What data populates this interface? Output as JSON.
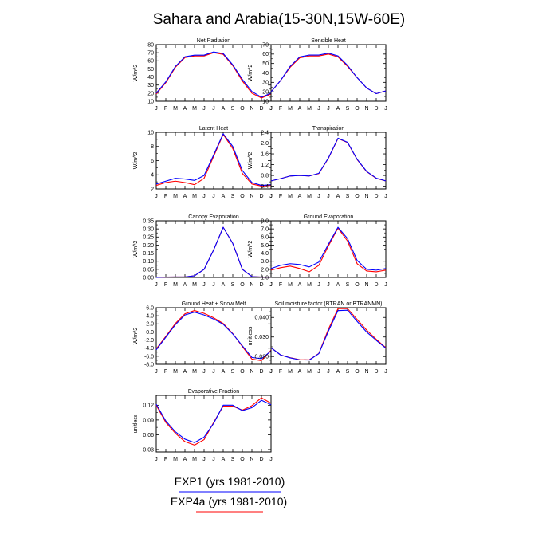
{
  "title": "Sahara and Arabia(15-30N,15W-60E)",
  "months": [
    "J",
    "F",
    "M",
    "A",
    "M",
    "J",
    "J",
    "A",
    "S",
    "O",
    "N",
    "D",
    "J"
  ],
  "legend": [
    {
      "label": "EXP1 (yrs 1981-2010)",
      "color": "#0000ff"
    },
    {
      "label": "EXP4a (yrs 1981-2010)",
      "color": "#ff0000"
    }
  ],
  "colors": {
    "exp1": "#0000ff",
    "exp4a": "#ff0000",
    "axis": "#000000"
  },
  "chart_data": [
    {
      "type": "line",
      "title": "Net Radiation",
      "ylabel": "W/m^2",
      "ylim": [
        10,
        80
      ],
      "yticks": [
        10,
        20,
        30,
        40,
        50,
        60,
        70,
        80
      ],
      "ytick_labels": [
        "10",
        "20",
        "30",
        "40",
        "50",
        "60",
        "70",
        "80"
      ],
      "series": [
        {
          "values": [
            20,
            34,
            53,
            65,
            67,
            67,
            71,
            69,
            55,
            37,
            22,
            15,
            20
          ]
        },
        {
          "values": [
            19,
            33,
            52,
            64,
            66,
            66,
            70,
            68,
            54,
            35,
            20,
            14,
            19
          ]
        }
      ]
    },
    {
      "type": "line",
      "title": "Sensible Heat",
      "ylabel": "W/m^2",
      "ylim": [
        10,
        70
      ],
      "yticks": [
        10,
        20,
        30,
        40,
        50,
        60,
        70
      ],
      "ytick_labels": [
        "10",
        "20",
        "30",
        "40",
        "50",
        "60",
        "70"
      ],
      "series": [
        {
          "values": [
            20,
            32,
            47,
            57,
            59,
            59,
            61,
            58,
            48,
            35,
            24,
            18,
            21
          ]
        },
        {
          "values": [
            20,
            32,
            46,
            56,
            58,
            58,
            60,
            57,
            47,
            35,
            24,
            18,
            21
          ]
        }
      ]
    },
    {
      "type": "line",
      "title": "Latent Heat",
      "ylabel": "W/m^2",
      "ylim": [
        2,
        10
      ],
      "yticks": [
        2,
        4,
        6,
        8,
        10
      ],
      "ytick_labels": [
        "2",
        "4",
        "6",
        "8",
        "10"
      ],
      "series": [
        {
          "values": [
            2.7,
            3.1,
            3.5,
            3.4,
            3.2,
            3.9,
            6.8,
            9.8,
            8.0,
            4.6,
            2.9,
            2.5,
            2.6
          ]
        },
        {
          "values": [
            2.5,
            2.9,
            3.1,
            2.9,
            2.6,
            3.5,
            6.6,
            9.7,
            7.7,
            4.2,
            2.7,
            2.4,
            2.5
          ]
        }
      ]
    },
    {
      "type": "line",
      "title": "Transpiration",
      "ylabel": "W/m^2",
      "ylim": [
        0.3,
        2.4
      ],
      "yticks": [
        0.4,
        0.8,
        1.2,
        1.6,
        2.0,
        2.4
      ],
      "ytick_labels": [
        "0.4",
        "0.8",
        "1.2",
        "1.6",
        "2.0",
        "2.4"
      ],
      "series": [
        {
          "values": [
            0.6,
            0.68,
            0.78,
            0.8,
            0.78,
            0.88,
            1.45,
            2.18,
            2.03,
            1.4,
            0.95,
            0.7,
            0.6
          ]
        },
        {
          "values": [
            0.6,
            0.68,
            0.78,
            0.8,
            0.78,
            0.87,
            1.44,
            2.17,
            2.02,
            1.39,
            0.94,
            0.69,
            0.6
          ]
        }
      ]
    },
    {
      "type": "line",
      "title": "Canopy Evaporation",
      "ylabel": "W/m^2",
      "ylim": [
        0,
        0.35
      ],
      "yticks": [
        0,
        0.05,
        0.1,
        0.15,
        0.2,
        0.25,
        0.3,
        0.35
      ],
      "ytick_labels": [
        "0.00",
        "0.05",
        "0.10",
        "0.15",
        "0.20",
        "0.25",
        "0.30",
        "0.35"
      ],
      "series": [
        {
          "values": [
            0,
            0.002,
            0.003,
            0.003,
            0.01,
            0.05,
            0.17,
            0.31,
            0.21,
            0.05,
            0.005,
            0.002,
            0.002
          ]
        },
        {
          "values": [
            0,
            0.002,
            0.003,
            0.003,
            0.01,
            0.05,
            0.17,
            0.31,
            0.21,
            0.05,
            0.005,
            0.002,
            0.002
          ]
        }
      ]
    },
    {
      "type": "line",
      "title": "Ground Evaporation",
      "ylabel": "W/m^2",
      "ylim": [
        1,
        8
      ],
      "yticks": [
        1,
        2,
        3,
        4,
        5,
        6,
        7,
        8
      ],
      "ytick_labels": [
        "1.0",
        "2.0",
        "3.0",
        "4.0",
        "5.0",
        "6.0",
        "7.0",
        "8.0"
      ],
      "series": [
        {
          "values": [
            2.1,
            2.5,
            2.7,
            2.6,
            2.3,
            2.9,
            5.1,
            7.2,
            5.8,
            3.1,
            2.0,
            1.9,
            2.1
          ]
        },
        {
          "values": [
            1.9,
            2.2,
            2.4,
            2.1,
            1.7,
            2.5,
            4.9,
            7.1,
            5.5,
            2.7,
            1.8,
            1.7,
            1.9
          ]
        }
      ]
    },
    {
      "type": "line",
      "title": "Ground Heat + Snow Melt",
      "ylabel": "W/m^2",
      "ylim": [
        -8,
        6
      ],
      "yticks": [
        -8,
        -6,
        -4,
        -2,
        0,
        2,
        4,
        6
      ],
      "ytick_labels": [
        "-8.0",
        "-6.0",
        "-4.0",
        "-2.0",
        "0.0",
        "2.0",
        "4.0",
        "6.0"
      ],
      "series": [
        {
          "values": [
            -4.4,
            -1.3,
            1.8,
            4.2,
            4.9,
            4.2,
            3.2,
            1.9,
            -0.5,
            -3.4,
            -6.3,
            -6.6,
            -4.7
          ]
        },
        {
          "values": [
            -4.2,
            -1.1,
            2.1,
            4.5,
            5.3,
            4.6,
            3.5,
            2.1,
            -0.4,
            -3.6,
            -6.7,
            -7.1,
            -4.5
          ]
        }
      ]
    },
    {
      "type": "line",
      "title": "Soil moisture factor (BTRAN or BTRANMN)",
      "ylabel": "unitless",
      "ylim": [
        0.016,
        0.045
      ],
      "yticks": [
        0.02,
        0.03,
        0.04
      ],
      "ytick_labels": [
        "0.020",
        "0.030",
        "0.040"
      ],
      "series": [
        {
          "values": [
            0.0245,
            0.0208,
            0.0193,
            0.0183,
            0.0182,
            0.0215,
            0.033,
            0.0435,
            0.0437,
            0.038,
            0.0325,
            0.0283,
            0.0243
          ]
        },
        {
          "values": [
            0.0245,
            0.0208,
            0.0194,
            0.0184,
            0.0183,
            0.0216,
            0.034,
            0.0445,
            0.0445,
            0.039,
            0.0335,
            0.0288,
            0.0245
          ]
        }
      ]
    },
    {
      "type": "line",
      "title": "Evaporative Fraction",
      "ylabel": "unitless",
      "ylim": [
        0.025,
        0.14
      ],
      "yticks": [
        0.03,
        0.06,
        0.09,
        0.12
      ],
      "ytick_labels": [
        "0.03",
        "0.06",
        "0.09",
        "0.12"
      ],
      "series": [
        {
          "values": [
            0.122,
            0.088,
            0.066,
            0.051,
            0.044,
            0.055,
            0.083,
            0.12,
            0.12,
            0.109,
            0.115,
            0.13,
            0.121
          ]
        },
        {
          "values": [
            0.12,
            0.085,
            0.063,
            0.046,
            0.039,
            0.05,
            0.085,
            0.118,
            0.118,
            0.11,
            0.119,
            0.135,
            0.124
          ]
        }
      ]
    }
  ]
}
